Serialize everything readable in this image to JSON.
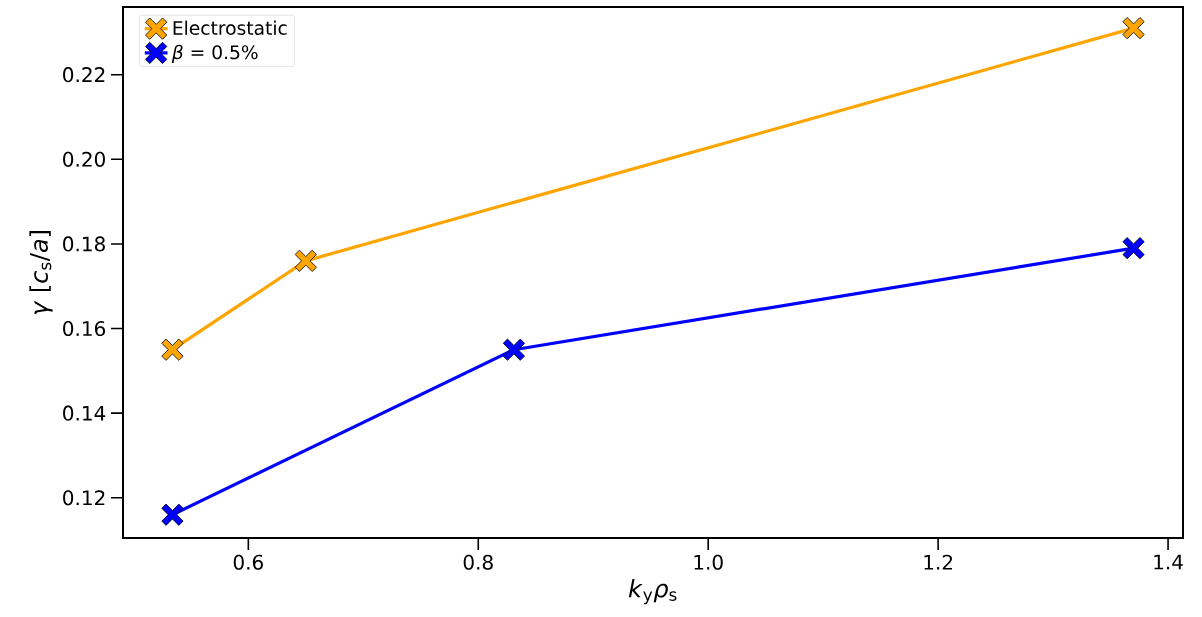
{
  "chart_data": {
    "type": "line",
    "xlabel": "*k*$_{y}$*ρ*$_{s}$",
    "ylabel": "*γ* [*c*$_{s}$/*a*]",
    "series": [
      {
        "name": "Electrostatic",
        "color": "#ffa500",
        "x": [
          0.534,
          0.65,
          1.37
        ],
        "values": [
          0.155,
          0.176,
          0.231
        ]
      },
      {
        "name": "*β* = 0.5%",
        "color": "#0000ff",
        "x": [
          0.534,
          0.831,
          1.37
        ],
        "values": [
          0.116,
          0.155,
          0.179
        ]
      }
    ],
    "xlim": [
      0.491,
      1.413
    ],
    "ylim": [
      0.1105,
      0.236
    ],
    "xticks": [
      0.6,
      0.8,
      {
        "value": 1.0,
        "label": "1.0"
      },
      1.2,
      1.4
    ],
    "yticks": [
      0.12,
      0.14,
      0.16,
      0.18,
      {
        "value": 0.2,
        "label": "0.20"
      },
      0.22
    ],
    "grid": false,
    "legend": "top left",
    "marker": "cross",
    "line_style": "solid"
  }
}
